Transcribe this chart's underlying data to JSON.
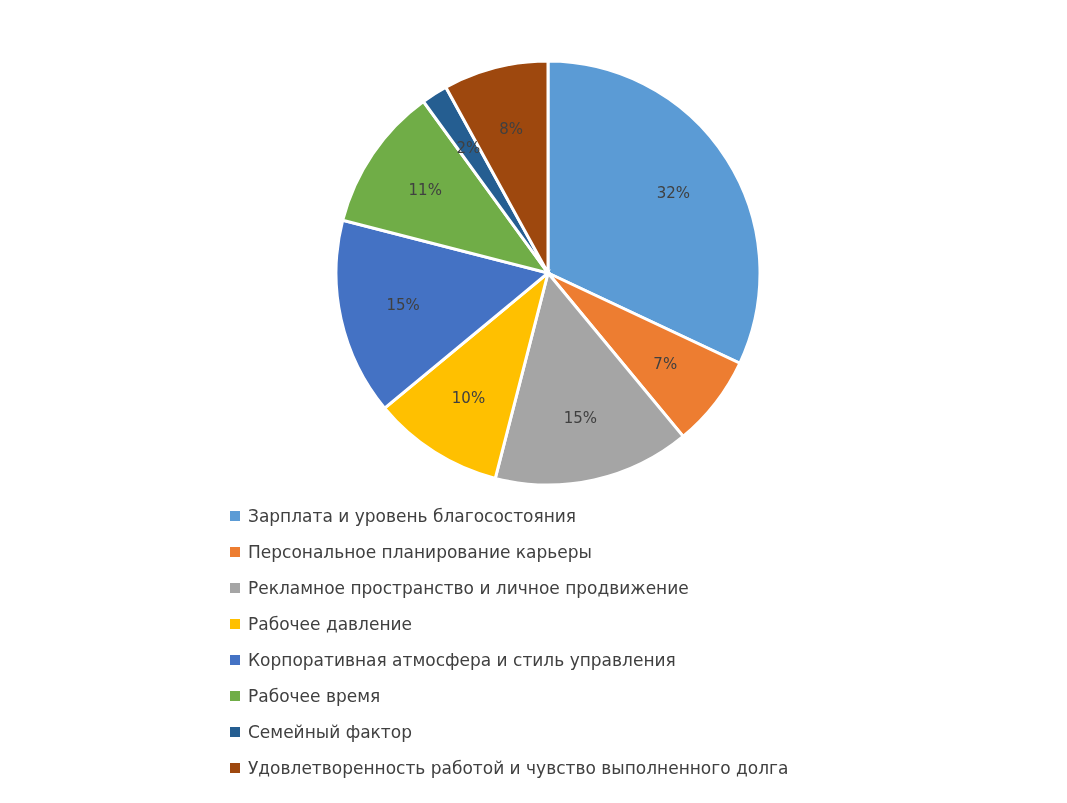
{
  "chart_data": {
    "type": "pie",
    "categories": [
      "Зарплата и уровень благосостояния",
      "Персональное планирование карьеры",
      "Рекламное пространство и личное продвижение",
      "Рабочее давление",
      "Корпоративная атмосфера и стиль управления",
      "Рабочее время",
      "Семейный фактор",
      "Удовлетворенность работой и чувство выполненного долга"
    ],
    "values": [
      32,
      7,
      15,
      10,
      15,
      11,
      2,
      8
    ],
    "value_labels": [
      "32%",
      "7%",
      "15%",
      "10%",
      "15%",
      "11%",
      "2%",
      "8%"
    ],
    "colors": [
      "#5b9bd5",
      "#ed7d31",
      "#a5a5a5",
      "#ffc000",
      "#4472c4",
      "#70ad47",
      "#255e91",
      "#9e480e"
    ],
    "legend": "bottom"
  }
}
